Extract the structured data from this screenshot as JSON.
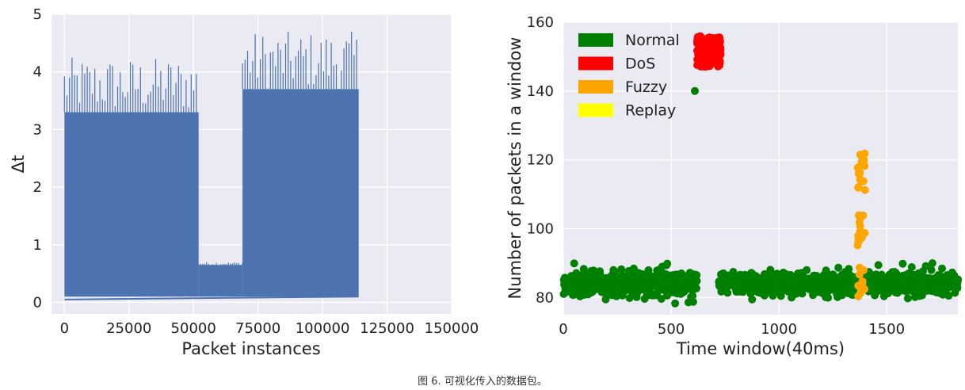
{
  "caption": "图 6. 可视化传入的数据包。",
  "chart_data": [
    {
      "type": "line",
      "xlabel": "Packet instances",
      "ylabel": "Δt",
      "xlim": [
        -5000,
        150000
      ],
      "ylim": [
        -0.2,
        5
      ],
      "xticks": [
        "0",
        "25000",
        "50000",
        "75000",
        "100000",
        "125000",
        "150000"
      ],
      "yticks": [
        "0",
        "1",
        "2",
        "3",
        "4",
        "5"
      ],
      "grid": true,
      "series": [
        {
          "color": "#4C72B0",
          "segments": [
            {
              "x_range": [
                0,
                52000
              ],
              "floor": 0.1,
              "band_top": 3.3,
              "peak": 4.25
            },
            {
              "x_range": [
                52000,
                69000
              ],
              "floor": 0.1,
              "band_top": 0.65,
              "peak": 0.7
            },
            {
              "x_range": [
                69000,
                114000
              ],
              "floor": 0.1,
              "band_top": 3.7,
              "peak": 4.7
            }
          ]
        }
      ]
    },
    {
      "type": "scatter",
      "xlabel": "Time window(40ms)",
      "ylabel": "Number of packets in a window",
      "xlim": [
        0,
        1830
      ],
      "ylim": [
        75,
        160
      ],
      "xticks": [
        "0",
        "500",
        "1000",
        "1500"
      ],
      "yticks": [
        "80",
        "100",
        "120",
        "140",
        "160"
      ],
      "grid": true,
      "legend_position": "top-left",
      "legend": [
        "Normal",
        "DoS",
        "Fuzzy",
        "Replay"
      ],
      "series": [
        {
          "name": "Normal",
          "color": "#008000",
          "x_ranges": [
            [
              0,
              620
            ],
            [
              720,
              1380
            ],
            [
              1400,
              1830
            ]
          ],
          "y_range": [
            78,
            90
          ]
        },
        {
          "name": "DoS",
          "color": "#FF0000",
          "x_range": [
            600,
            730
          ],
          "y_range": [
            147,
            156
          ]
        },
        {
          "name": "Fuzzy",
          "color": "#FFA500",
          "x_range": [
            1365,
            1400
          ],
          "y_range": [
            78,
            122
          ]
        },
        {
          "name": "Replay",
          "color": "#FFFF00",
          "points": []
        }
      ],
      "outliers": [
        {
          "series": "Normal",
          "x": 610,
          "y": 140
        }
      ]
    }
  ]
}
